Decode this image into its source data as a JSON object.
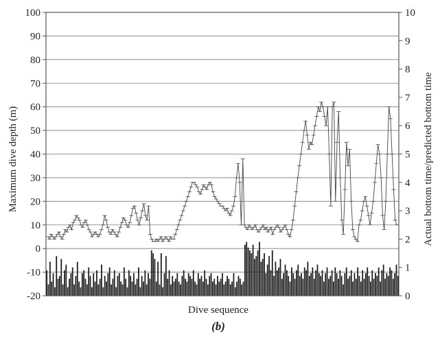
{
  "chart_data": {
    "type": "line",
    "panel_label": "(b)",
    "xlabel": "Dive sequence",
    "ylabel": "Maximum dive depth (m)",
    "y2label": "Actual bottom time/predicted bottom time",
    "ylim": [
      -20,
      100
    ],
    "y_ticks": [
      -20,
      -10,
      0,
      10,
      20,
      30,
      40,
      50,
      60,
      70,
      80,
      90,
      100
    ],
    "y2lim": [
      0,
      10
    ],
    "y2_ticks": [
      0,
      1,
      2,
      3,
      4,
      5,
      6,
      7,
      8,
      9,
      10
    ],
    "grid": true,
    "series": [
      {
        "axis": "left",
        "type": "line",
        "values": [
          5,
          4,
          6,
          5,
          4,
          5,
          6,
          7,
          5,
          4,
          6,
          8,
          7,
          9,
          10,
          8,
          11,
          12,
          14,
          13,
          12,
          10,
          9,
          11,
          12,
          10,
          8,
          7,
          5,
          6,
          7,
          6,
          5,
          6,
          8,
          10,
          14,
          12,
          9,
          7,
          6,
          8,
          7,
          6,
          5,
          7,
          9,
          11,
          13,
          12,
          10,
          9,
          11,
          14,
          17,
          18,
          15,
          12,
          10,
          13,
          16,
          19,
          14,
          12,
          18,
          6,
          4,
          3,
          3,
          4,
          3,
          4,
          5,
          3,
          4,
          5,
          4,
          3,
          5,
          4,
          4,
          6,
          8,
          10,
          12,
          14,
          16,
          18,
          20,
          22,
          24,
          26,
          28,
          28,
          27,
          26,
          24,
          23,
          25,
          27,
          26,
          25,
          27,
          28,
          27,
          24,
          22,
          21,
          20,
          19,
          18,
          18,
          17,
          16,
          17,
          15,
          14,
          16,
          18,
          22,
          30,
          36,
          28,
          10,
          38,
          10,
          9,
          8,
          10,
          9,
          8,
          9,
          10,
          8,
          7,
          8,
          9,
          10,
          8,
          9,
          7,
          8,
          9,
          6,
          8,
          9,
          10,
          9,
          7,
          8,
          9,
          10,
          8,
          6,
          5,
          8,
          12,
          18,
          24,
          30,
          35,
          40,
          45,
          50,
          54,
          48,
          42,
          45,
          44,
          48,
          52,
          56,
          60,
          58,
          62,
          60,
          56,
          52,
          60,
          40,
          18,
          60,
          62,
          20,
          45,
          58,
          30,
          12,
          6,
          25,
          45,
          35,
          42,
          20,
          8,
          5,
          4,
          3,
          10,
          12,
          16,
          20,
          22,
          18,
          14,
          10,
          15,
          20,
          28,
          36,
          44,
          40,
          30,
          14,
          8,
          20,
          40,
          60,
          55,
          40,
          25,
          12,
          10
        ]
      },
      {
        "axis": "right",
        "type": "bar",
        "values": [
          0.9,
          0.4,
          1.2,
          0.5,
          0.8,
          0.3,
          1.4,
          0.6,
          0.7,
          1.3,
          0.4,
          0.9,
          1.1,
          0.3,
          0.6,
          0.8,
          1.0,
          0.4,
          0.7,
          1.2,
          0.5,
          0.3,
          0.8,
          0.9,
          0.6,
          0.4,
          1.0,
          0.7,
          0.3,
          0.8,
          0.5,
          0.9,
          0.4,
          0.6,
          1.1,
          0.3,
          0.7,
          0.5,
          0.8,
          1.0,
          0.4,
          0.6,
          0.9,
          0.3,
          0.7,
          0.8,
          0.5,
          0.4,
          1.0,
          0.6,
          0.3,
          0.9,
          0.7,
          0.5,
          0.8,
          0.4,
          0.6,
          1.0,
          0.3,
          0.7,
          0.5,
          0.9,
          0.4,
          0.8,
          0.6,
          1.6,
          1.5,
          1.3,
          0.5,
          1.2,
          0.4,
          1.5,
          0.3,
          0.8,
          1.4,
          0.6,
          0.9,
          0.4,
          0.7,
          0.5,
          0.6,
          0.8,
          0.5,
          0.4,
          0.7,
          0.9,
          0.6,
          0.5,
          0.8,
          0.7,
          0.6,
          0.9,
          0.5,
          0.4,
          0.8,
          0.6,
          0.7,
          0.5,
          0.9,
          0.6,
          0.4,
          0.7,
          0.8,
          0.5,
          0.6,
          0.4,
          0.7,
          0.5,
          0.6,
          0.8,
          0.4,
          0.5,
          0.7,
          0.6,
          0.4,
          0.5,
          0.8,
          0.3,
          0.5,
          0.7,
          0.6,
          0.4,
          0.5,
          1.8,
          1.9,
          1.7,
          1.6,
          1.5,
          1.8,
          1.3,
          1.4,
          1.6,
          1.9,
          1.2,
          1.3,
          1.5,
          0.8,
          1.1,
          1.4,
          0.9,
          1.6,
          0.7,
          1.2,
          0.9,
          1.0,
          1.3,
          0.6,
          0.8,
          1.1,
          0.9,
          0.7,
          0.5,
          1.0,
          0.8,
          0.6,
          0.9,
          1.1,
          0.7,
          0.8,
          0.6,
          1.0,
          0.9,
          1.2,
          0.7,
          0.8,
          1.0,
          0.6,
          0.9,
          1.1,
          0.8,
          0.7,
          0.9,
          0.5,
          0.8,
          1.0,
          0.6,
          0.7,
          0.9,
          0.5,
          1.0,
          0.8,
          0.6,
          0.9,
          0.7,
          0.4,
          0.8,
          1.0,
          0.6,
          0.7,
          0.9,
          0.5,
          0.8,
          0.6,
          1.0,
          0.7,
          0.5,
          0.9,
          0.6,
          0.8,
          1.0,
          0.7,
          0.5,
          0.9,
          0.6,
          0.8,
          0.7,
          1.0,
          0.5,
          0.9,
          1.1,
          0.6,
          0.8,
          0.7,
          1.0,
          0.9,
          0.6,
          0.8,
          1.1,
          0.7
        ]
      }
    ]
  },
  "colors": {
    "line": "#444444",
    "bars": "#1a1a1a",
    "grid": "#7a7a7a",
    "frame": "#555555"
  }
}
